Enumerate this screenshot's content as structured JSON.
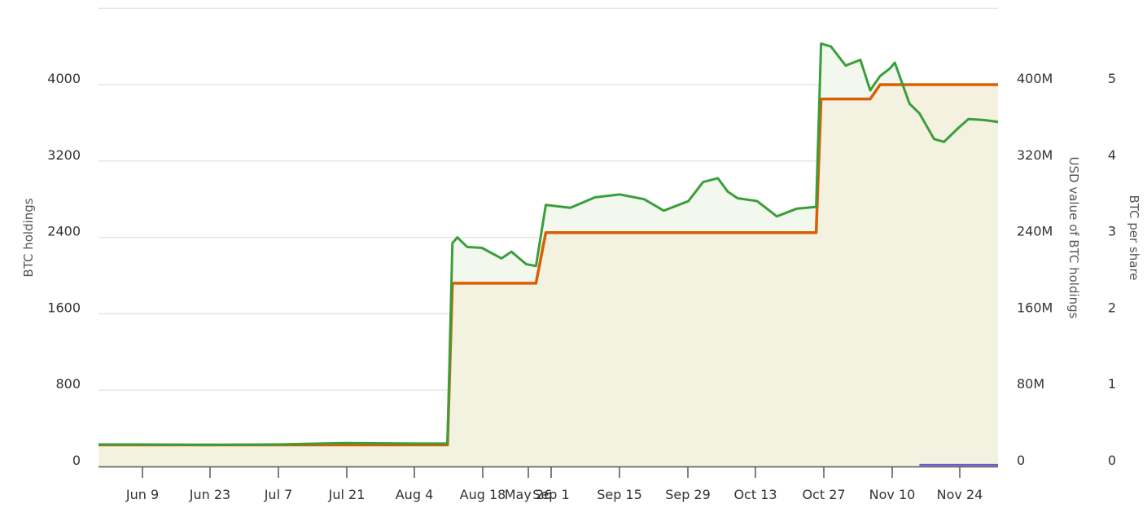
{
  "chart_data": {
    "type": "line",
    "title": "",
    "xlabel": "",
    "x_tick_labels": [
      "Jun 9",
      "Jun 23",
      "Jul 7",
      "Jul 21",
      "Aug 4",
      "Aug 18",
      "May 26",
      "Sep 1",
      "Sep 15",
      "Sep 29",
      "Oct 13",
      "Oct 27",
      "Nov 10",
      "Nov 24"
    ],
    "y_axes": [
      {
        "id": "left",
        "label": "BTC holdings",
        "ticks": [
          "0",
          "800",
          "1600",
          "2400",
          "3200",
          "4000"
        ],
        "range": [
          0,
          4800
        ]
      },
      {
        "id": "right1",
        "label": "USD value of BTC holdings",
        "ticks": [
          "0",
          "80M",
          "160M",
          "240M",
          "320M",
          "400M"
        ],
        "range": [
          0,
          480000000
        ]
      },
      {
        "id": "right2",
        "label": "BTC per share",
        "ticks": [
          "0",
          "1",
          "2",
          "3",
          "4",
          "5"
        ],
        "range": [
          0,
          6
        ]
      }
    ],
    "grid": true,
    "legend": null,
    "series": [
      {
        "name": "BTC holdings",
        "axis": "left",
        "color": "#d95f02",
        "style": "step",
        "points": [
          [
            "Jun 1",
            226
          ],
          [
            "Aug 11",
            226
          ],
          [
            "Aug 12",
            1920
          ],
          [
            "Aug 29",
            1920
          ],
          [
            "Aug 31",
            2450
          ],
          [
            "Oct 25",
            2450
          ],
          [
            "Oct 26",
            3850
          ],
          [
            "Nov 5",
            3850
          ],
          [
            "Nov 7",
            4000
          ],
          [
            "Dec 1",
            4000
          ]
        ]
      },
      {
        "name": "USD value of BTC holdings",
        "axis": "right1",
        "color": "#3a9e3a",
        "points": [
          [
            "Jun 1",
            23000000
          ],
          [
            "Jun 9",
            23000000
          ],
          [
            "Jun 23",
            22500000
          ],
          [
            "Jul 7",
            23000000
          ],
          [
            "Jul 21",
            24500000
          ],
          [
            "Aug 4",
            24000000
          ],
          [
            "Aug 11",
            24000000
          ],
          [
            "Aug 12",
            234000000
          ],
          [
            "Aug 13",
            240000000
          ],
          [
            "Aug 15",
            230000000
          ],
          [
            "Aug 18",
            229000000
          ],
          [
            "Aug 22",
            218000000
          ],
          [
            "Aug 24",
            225000000
          ],
          [
            "Aug 27",
            212000000
          ],
          [
            "Aug 29",
            210000000
          ],
          [
            "Aug 31",
            274000000
          ],
          [
            "Sep 5",
            271000000
          ],
          [
            "Sep 10",
            282000000
          ],
          [
            "Sep 15",
            285000000
          ],
          [
            "Sep 20",
            280000000
          ],
          [
            "Sep 24",
            268000000
          ],
          [
            "Sep 29",
            278000000
          ],
          [
            "Oct 2",
            298000000
          ],
          [
            "Oct 5",
            302000000
          ],
          [
            "Oct 7",
            288000000
          ],
          [
            "Oct 9",
            281000000
          ],
          [
            "Oct 13",
            278000000
          ],
          [
            "Oct 17",
            262000000
          ],
          [
            "Oct 21",
            270000000
          ],
          [
            "Oct 25",
            272000000
          ],
          [
            "Oct 26",
            443000000
          ],
          [
            "Oct 28",
            440000000
          ],
          [
            "Oct 31",
            420000000
          ],
          [
            "Nov 3",
            426000000
          ],
          [
            "Nov 5",
            394000000
          ],
          [
            "Nov 7",
            409000000
          ],
          [
            "Nov 9",
            417000000
          ],
          [
            "Nov 10",
            423000000
          ],
          [
            "Nov 13",
            380000000
          ],
          [
            "Nov 15",
            370000000
          ],
          [
            "Nov 18",
            343000000
          ],
          [
            "Nov 20",
            340000000
          ],
          [
            "Nov 23",
            355000000
          ],
          [
            "Nov 25",
            364000000
          ],
          [
            "Nov 28",
            363000000
          ],
          [
            "Dec 1",
            361000000
          ]
        ]
      },
      {
        "name": "BTC per share",
        "axis": "right2",
        "color": "#6a5acd",
        "points": [
          [
            "Nov 15",
            0.02
          ],
          [
            "Dec 1",
            0.02
          ]
        ]
      }
    ]
  },
  "axes": {
    "left_title": "BTC holdings",
    "right1_title": "USD value of BTC holdings",
    "right2_title": "BTC per share"
  }
}
